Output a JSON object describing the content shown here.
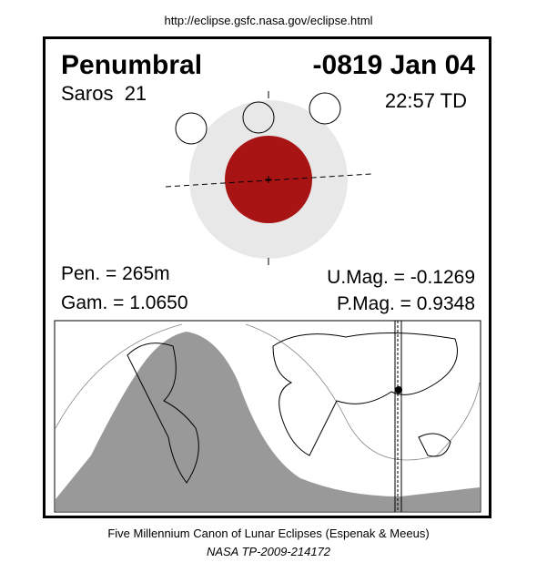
{
  "header": {
    "url": "http://eclipse.gsfc.nasa.gov/eclipse.html"
  },
  "eclipse": {
    "type": "Penumbral",
    "date": "-0819 Jan 04",
    "saros": "Saros  21",
    "time": "22:57 TD",
    "pen": "Pen. = 265m",
    "umag": "U.Mag. = -0.1269",
    "gam": "Gam. = 1.0650",
    "pmag": "P.Mag. = 0.9348"
  },
  "footer": {
    "line1": "Five Millennium Canon of Lunar Eclipses (Espenak & Meeus)",
    "line2": "NASA TP-2009-214172"
  }
}
